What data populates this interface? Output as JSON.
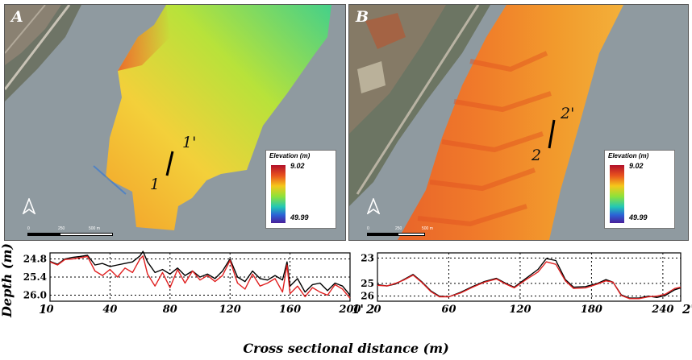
{
  "panel_a": {
    "letter": "A",
    "section_start": "1",
    "section_end": "1'",
    "legend": {
      "title": "Elevation (m)",
      "max": "9.02",
      "min": "49.99"
    },
    "scale": {
      "t0": "0",
      "t1": "250",
      "t2": "500 m"
    }
  },
  "panel_b": {
    "letter": "B",
    "section_start": "2",
    "section_end": "2'",
    "legend": {
      "title": "Elevation (m)",
      "max": "9.02",
      "min": "49.99"
    },
    "scale": {
      "t0": "0",
      "t1": "250",
      "t2": "500 m"
    }
  },
  "colors": {
    "measured": "#000000",
    "estimated": "#e02020"
  },
  "icons": [
    "north-arrow-icon"
  ],
  "chart_data": [
    {
      "type": "line",
      "ylabel": "Depth (m)",
      "xlabel": "Cross sectional distance (m)",
      "x_ticks": [
        "0",
        "40",
        "80",
        "120",
        "160",
        "200"
      ],
      "y_ticks": [
        "24.8",
        "25.4",
        "26.0"
      ],
      "xlim": [
        0,
        200
      ],
      "ylim": [
        24.6,
        26.2
      ],
      "y_inverted": true,
      "grid": true,
      "start_label": "1",
      "end_label": "1'",
      "series": [
        {
          "color": "#000000",
          "x": [
            0,
            5,
            10,
            15,
            20,
            25,
            30,
            35,
            40,
            45,
            50,
            55,
            60,
            62,
            65,
            70,
            75,
            80,
            85,
            90,
            95,
            100,
            105,
            110,
            115,
            120,
            125,
            130,
            135,
            140,
            145,
            150,
            155,
            158,
            160,
            165,
            170,
            175,
            180,
            185,
            190,
            195,
            200
          ],
          "y": [
            24.88,
            24.98,
            24.8,
            24.75,
            24.72,
            24.68,
            25.0,
            24.95,
            25.05,
            25.0,
            24.95,
            24.9,
            24.7,
            24.55,
            24.9,
            25.25,
            25.15,
            25.3,
            25.1,
            25.35,
            25.2,
            25.4,
            25.3,
            25.45,
            25.2,
            24.8,
            25.4,
            25.55,
            25.2,
            25.45,
            25.5,
            25.35,
            25.5,
            24.9,
            25.7,
            25.45,
            25.9,
            25.65,
            25.6,
            25.85,
            25.6,
            25.7,
            26.0
          ]
        },
        {
          "color": "#e02020",
          "x": [
            0,
            5,
            10,
            15,
            20,
            25,
            30,
            35,
            40,
            45,
            50,
            55,
            60,
            62,
            65,
            70,
            75,
            80,
            85,
            90,
            95,
            100,
            105,
            110,
            115,
            120,
            125,
            130,
            135,
            140,
            145,
            150,
            155,
            158,
            160,
            165,
            170,
            175,
            180,
            185,
            190,
            195,
            200
          ],
          "y": [
            24.9,
            25.0,
            24.82,
            24.8,
            24.76,
            24.72,
            25.2,
            25.35,
            25.15,
            25.4,
            25.1,
            25.25,
            24.8,
            24.7,
            25.3,
            25.7,
            25.25,
            25.75,
            25.15,
            25.6,
            25.2,
            25.5,
            25.35,
            25.55,
            25.35,
            24.85,
            25.6,
            25.8,
            25.3,
            25.7,
            25.6,
            25.45,
            25.9,
            25.0,
            25.95,
            25.7,
            26.05,
            25.75,
            25.9,
            26.0,
            25.65,
            25.8,
            26.1
          ]
        }
      ]
    },
    {
      "type": "line",
      "ylabel": "",
      "xlabel": "Cross sectional distance (m)",
      "x_ticks": [
        "0",
        "60",
        "120",
        "180",
        "240"
      ],
      "y_ticks": [
        "23",
        "25",
        "26"
      ],
      "xlim": [
        0,
        255
      ],
      "ylim": [
        22.6,
        26.4
      ],
      "y_inverted": true,
      "grid": true,
      "start_label": "2",
      "end_label": "2'",
      "series": [
        {
          "color": "#000000",
          "x": [
            0,
            8,
            15,
            22,
            30,
            37,
            45,
            52,
            60,
            70,
            80,
            90,
            100,
            108,
            115,
            125,
            135,
            142,
            150,
            158,
            165,
            175,
            185,
            192,
            198,
            205,
            212,
            220,
            228,
            235,
            242,
            250,
            255
          ],
          "y": [
            25.1,
            25.2,
            25.05,
            24.7,
            24.3,
            24.85,
            25.6,
            26.0,
            26.05,
            25.7,
            25.25,
            24.85,
            24.6,
            25.0,
            25.3,
            24.6,
            23.9,
            23.05,
            23.2,
            24.7,
            25.3,
            25.25,
            25.0,
            24.7,
            24.9,
            25.9,
            26.15,
            26.15,
            26.0,
            26.1,
            25.95,
            25.5,
            25.35
          ]
        },
        {
          "color": "#e02020",
          "x": [
            0,
            8,
            15,
            22,
            30,
            37,
            45,
            52,
            60,
            70,
            80,
            90,
            100,
            108,
            115,
            125,
            135,
            142,
            150,
            158,
            165,
            175,
            185,
            192,
            198,
            205,
            212,
            220,
            228,
            235,
            242,
            250,
            255
          ],
          "y": [
            25.15,
            25.2,
            25.0,
            24.75,
            24.35,
            24.9,
            25.65,
            26.05,
            26.05,
            25.75,
            25.3,
            24.9,
            24.65,
            25.05,
            25.35,
            24.7,
            24.1,
            23.3,
            23.5,
            24.8,
            25.4,
            25.35,
            25.05,
            24.8,
            24.9,
            25.95,
            26.2,
            26.2,
            26.05,
            26.0,
            25.85,
            25.4,
            25.3
          ]
        }
      ]
    }
  ]
}
